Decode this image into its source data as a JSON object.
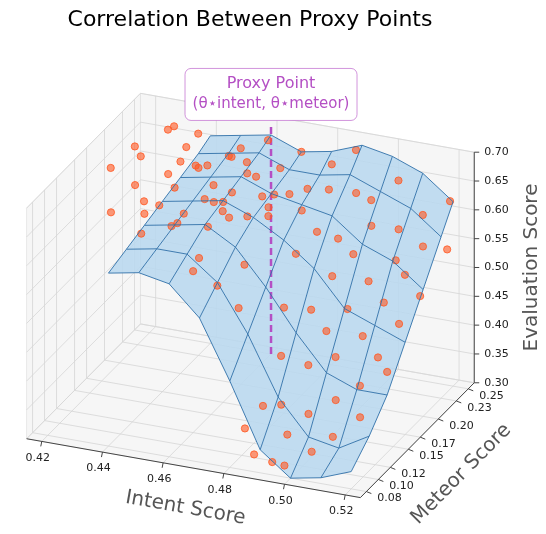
{
  "chart_data": {
    "type": "scatter3d",
    "title": "Correlation Between Proxy Points",
    "x_label": "Intent Score",
    "y_label": "Meteor Score",
    "z_label": "Evaluation Score",
    "grid": true,
    "xlim": [
      0.415,
      0.525
    ],
    "xticks": [
      0.42,
      0.44,
      0.46,
      0.48,
      {
        "value": 0.5,
        "label": "0.50"
      },
      0.52
    ],
    "ylim": [
      0.07,
      0.26
    ],
    "yticks": [
      0.08,
      {
        "value": 0.1,
        "label": "0.10"
      },
      0.12,
      0.15,
      0.17,
      {
        "value": 0.2,
        "label": "0.20"
      },
      0.23,
      0.25
    ],
    "zlim": [
      0.3,
      0.7
    ],
    "zticks": [
      {
        "value": 0.3,
        "label": "0.30"
      },
      0.35,
      {
        "value": 0.4,
        "label": "0.40"
      },
      0.45,
      {
        "value": 0.5,
        "label": "0.50"
      },
      0.55,
      {
        "value": 0.6,
        "label": "0.60"
      },
      0.65,
      {
        "value": 0.7,
        "label": "0.70"
      }
    ],
    "surface": {
      "color": "#b9d8f0",
      "x": [
        0.44,
        0.45,
        0.46,
        0.47,
        0.48,
        0.49,
        0.5,
        0.51,
        0.52
      ],
      "y": [
        0.08,
        0.11,
        0.14,
        0.17,
        0.2,
        0.23,
        0.25
      ],
      "z": [
        [
          0.6,
          0.61,
          0.6,
          0.55,
          0.45,
          0.34,
          0.3,
          0.31,
          0.33
        ],
        [
          0.61,
          0.62,
          0.62,
          0.58,
          0.5,
          0.4,
          0.34,
          0.33,
          0.36
        ],
        [
          0.62,
          0.63,
          0.64,
          0.61,
          0.55,
          0.48,
          0.42,
          0.4,
          0.4
        ],
        [
          0.63,
          0.64,
          0.65,
          0.63,
          0.6,
          0.56,
          0.5,
          0.48,
          0.46
        ],
        [
          0.64,
          0.65,
          0.66,
          0.64,
          0.63,
          0.62,
          0.58,
          0.56,
          0.52
        ],
        [
          0.65,
          0.66,
          0.67,
          0.65,
          0.65,
          0.66,
          0.64,
          0.62,
          0.58
        ],
        [
          0.66,
          0.67,
          0.68,
          0.66,
          0.67,
          0.69,
          0.68,
          0.66,
          0.62
        ]
      ]
    },
    "points": {
      "color": "#ff5722",
      "marker": "circle",
      "values": [
        [
          0.421,
          0.18,
          0.66
        ],
        [
          0.423,
          0.22,
          0.64
        ],
        [
          0.425,
          0.2,
          0.68
        ],
        [
          0.427,
          0.15,
          0.62
        ],
        [
          0.428,
          0.24,
          0.67
        ],
        [
          0.43,
          0.19,
          0.6
        ],
        [
          0.431,
          0.17,
          0.65
        ],
        [
          0.432,
          0.23,
          0.69
        ],
        [
          0.434,
          0.21,
          0.63
        ],
        [
          0.435,
          0.16,
          0.58
        ],
        [
          0.436,
          0.25,
          0.66
        ],
        [
          0.437,
          0.18,
          0.61
        ],
        [
          0.438,
          0.22,
          0.67
        ],
        [
          0.439,
          0.2,
          0.56
        ],
        [
          0.44,
          0.14,
          0.64
        ],
        [
          0.441,
          0.24,
          0.62
        ],
        [
          0.442,
          0.19,
          0.68
        ],
        [
          0.443,
          0.17,
          0.59
        ],
        [
          0.444,
          0.21,
          0.65
        ],
        [
          0.445,
          0.23,
          0.6
        ],
        [
          0.446,
          0.16,
          0.67
        ],
        [
          0.447,
          0.25,
          0.63
        ],
        [
          0.448,
          0.2,
          0.61
        ],
        [
          0.449,
          0.18,
          0.69
        ],
        [
          0.45,
          0.22,
          0.57
        ],
        [
          0.451,
          0.15,
          0.64
        ],
        [
          0.452,
          0.24,
          0.66
        ],
        [
          0.453,
          0.19,
          0.62
        ],
        [
          0.454,
          0.21,
          0.68
        ],
        [
          0.455,
          0.17,
          0.6
        ],
        [
          0.456,
          0.23,
          0.65
        ],
        [
          0.457,
          0.2,
          0.63
        ],
        [
          0.458,
          0.14,
          0.58
        ],
        [
          0.459,
          0.25,
          0.67
        ],
        [
          0.46,
          0.18,
          0.61
        ],
        [
          0.461,
          0.22,
          0.64
        ],
        [
          0.462,
          0.16,
          0.66
        ],
        [
          0.463,
          0.24,
          0.59
        ],
        [
          0.464,
          0.19,
          0.68
        ],
        [
          0.465,
          0.21,
          0.62
        ],
        [
          0.466,
          0.13,
          0.55
        ],
        [
          0.467,
          0.23,
          0.65
        ],
        [
          0.468,
          0.17,
          0.63
        ],
        [
          0.469,
          0.2,
          0.6
        ],
        [
          0.47,
          0.25,
          0.66
        ],
        [
          0.471,
          0.15,
          0.57
        ],
        [
          0.472,
          0.22,
          0.62
        ],
        [
          0.473,
          0.18,
          0.64
        ],
        [
          0.474,
          0.24,
          0.61
        ],
        [
          0.475,
          0.12,
          0.53
        ],
        [
          0.46,
          0.12,
          0.58
        ],
        [
          0.48,
          0.2,
          0.62
        ],
        [
          0.482,
          0.24,
          0.66
        ],
        [
          0.484,
          0.17,
          0.58
        ],
        [
          0.485,
          0.22,
          0.64
        ],
        [
          0.486,
          0.14,
          0.52
        ],
        [
          0.487,
          0.19,
          0.6
        ],
        [
          0.488,
          0.25,
          0.68
        ],
        [
          0.489,
          0.12,
          0.46
        ],
        [
          0.49,
          0.21,
          0.57
        ],
        [
          0.491,
          0.16,
          0.5
        ],
        [
          0.492,
          0.23,
          0.63
        ],
        [
          0.493,
          0.1,
          0.4
        ],
        [
          0.494,
          0.18,
          0.54
        ],
        [
          0.495,
          0.24,
          0.61
        ],
        [
          0.496,
          0.13,
          0.44
        ],
        [
          0.497,
          0.2,
          0.56
        ],
        [
          0.498,
          0.15,
          0.48
        ],
        [
          0.499,
          0.22,
          0.59
        ],
        [
          0.5,
          0.11,
          0.38
        ],
        [
          0.501,
          0.17,
          0.5
        ],
        [
          0.502,
          0.25,
          0.64
        ],
        [
          0.503,
          0.14,
          0.45
        ],
        [
          0.504,
          0.19,
          0.53
        ],
        [
          0.505,
          0.09,
          0.34
        ],
        [
          0.506,
          0.23,
          0.58
        ],
        [
          0.507,
          0.12,
          0.4
        ],
        [
          0.508,
          0.16,
          0.47
        ],
        [
          0.509,
          0.21,
          0.55
        ],
        [
          0.51,
          0.1,
          0.36
        ],
        [
          0.511,
          0.18,
          0.51
        ],
        [
          0.512,
          0.24,
          0.6
        ],
        [
          0.513,
          0.13,
          0.42
        ],
        [
          0.514,
          0.2,
          0.54
        ],
        [
          0.515,
          0.15,
          0.45
        ],
        [
          0.516,
          0.22,
          0.57
        ],
        [
          0.517,
          0.11,
          0.39
        ],
        [
          0.518,
          0.17,
          0.49
        ],
        [
          0.519,
          0.25,
          0.62
        ],
        [
          0.52,
          0.14,
          0.44
        ],
        [
          0.521,
          0.19,
          0.52
        ],
        [
          0.522,
          0.23,
          0.56
        ],
        [
          0.483,
          0.09,
          0.36
        ],
        [
          0.488,
          0.08,
          0.33
        ],
        [
          0.492,
          0.09,
          0.31
        ],
        [
          0.495,
          0.1,
          0.35
        ],
        [
          0.498,
          0.08,
          0.32
        ],
        [
          0.485,
          0.11,
          0.38
        ]
      ]
    },
    "annotation": {
      "text": "Proxy Point",
      "label": "(θ⋆intent, θ⋆meteor)",
      "color": "#b44fc4",
      "line_style": "dashed",
      "x": 0.46,
      "y": 0.25,
      "z": [
        0.3,
        0.7
      ]
    }
  }
}
